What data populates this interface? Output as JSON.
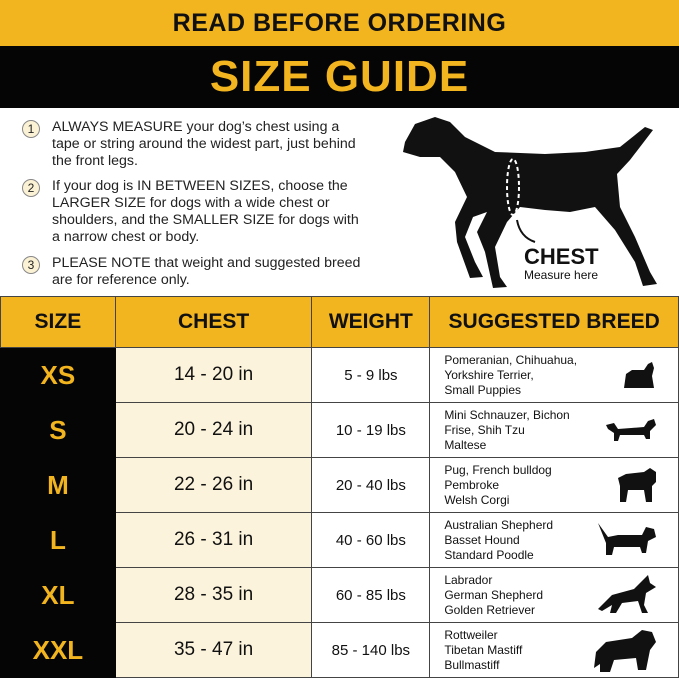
{
  "header": {
    "notice": "READ BEFORE ORDERING",
    "title": "SIZE GUIDE"
  },
  "instructions": [
    {
      "num": "1",
      "text": "ALWAYS MEASURE your dog’s chest using a tape or string around the widest part, just behind the front legs."
    },
    {
      "num": "2",
      "text": "If your dog is IN BETWEEN SIZES, choose the LARGER SIZE for dogs with a wide chest or shoulders, and the SMALLER SIZE for dogs with a narrow chest or body."
    },
    {
      "num": "3",
      "text": "PLEASE NOTE that weight and suggested breed are for reference only."
    }
  ],
  "diagram": {
    "label": "CHEST",
    "sublabel": "Measure here"
  },
  "table": {
    "headers": [
      "SIZE",
      "CHEST",
      "WEIGHT",
      "SUGGESTED BREED"
    ],
    "rows": [
      {
        "size": "XS",
        "chest": "14 - 20 in",
        "weight": "5 - 9 lbs",
        "breed": [
          "Pomeranian, Chihuahua,",
          "Yorkshire Terrier,",
          "Small Puppies"
        ],
        "icon": "yorkshire-terrier-icon"
      },
      {
        "size": "S",
        "chest": "20 - 24 in",
        "weight": "10 - 19 lbs",
        "breed": [
          "Mini Schnauzer, Bichon",
          "Frise, Shih Tzu",
          "Maltese"
        ],
        "icon": "dachshund-icon"
      },
      {
        "size": "M",
        "chest": "22 - 26 in",
        "weight": "20 - 40 lbs",
        "breed": [
          "Pug, French bulldog",
          "Pembroke",
          "Welsh Corgi"
        ],
        "icon": "pug-icon"
      },
      {
        "size": "L",
        "chest": "26 - 31 in",
        "weight": "40 - 60 lbs",
        "breed": [
          "Australian Shepherd",
          "Basset Hound",
          "Standard Poodle"
        ],
        "icon": "basset-hound-icon"
      },
      {
        "size": "XL",
        "chest": "28 - 35 in",
        "weight": "60 - 85 lbs",
        "breed": [
          "Labrador",
          "German Shepherd",
          "Golden Retriever"
        ],
        "icon": "german-shepherd-icon"
      },
      {
        "size": "XXL",
        "chest": "35 - 47 in",
        "weight": "85 - 140 lbs",
        "breed": [
          "Rottweiler",
          "Tibetan Mastiff",
          "Bullmastiff"
        ],
        "icon": "mastiff-icon"
      }
    ]
  },
  "colors": {
    "accent": "#f2b41f",
    "dark": "#050505",
    "chest_cell": "#fcf3dc"
  }
}
